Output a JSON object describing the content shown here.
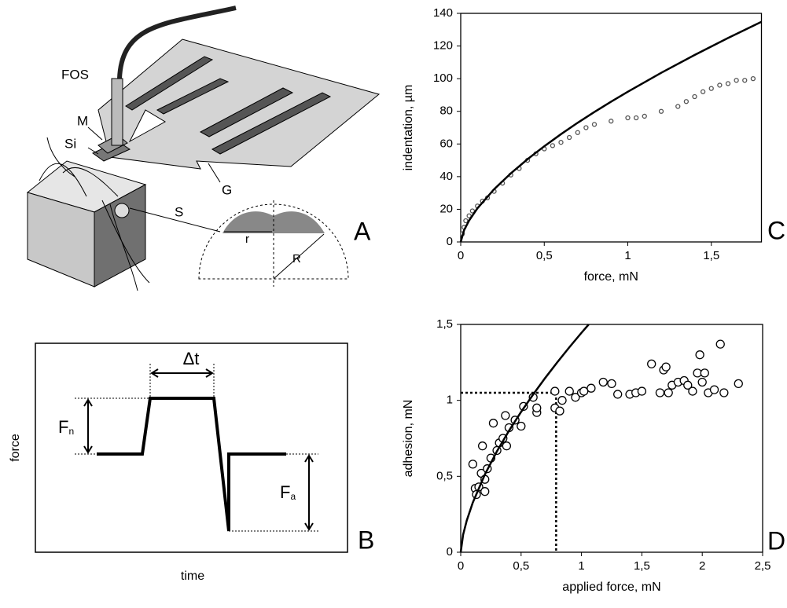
{
  "panel_a": {
    "labels": {
      "fos": "FOS",
      "m": "M",
      "si": "Si",
      "g": "G",
      "s": "S",
      "r_small": "r",
      "r_big": "R"
    },
    "panel_label": "A"
  },
  "panel_b": {
    "y_label": "force",
    "x_label": "time",
    "delta": "Δt",
    "fn": {
      "base": "F",
      "sub": "n"
    },
    "fa": {
      "base": "F",
      "sub": "a"
    },
    "panel_label": "B"
  },
  "chart_data": [
    {
      "type": "scatter",
      "panel_label": "C",
      "x_label": "force, mN",
      "y_label": "indentation, µm",
      "xlim": [
        0,
        1.8
      ],
      "ylim": [
        0,
        140
      ],
      "xticks": [
        0,
        {
          "value": 0.5,
          "label": "0,5"
        },
        1,
        {
          "value": 1.5,
          "label": "1,5"
        }
      ],
      "yticks": [
        0,
        20,
        40,
        60,
        80,
        100,
        120,
        140
      ],
      "grid": false,
      "series": [
        {
          "style": "markers",
          "color": "#555555",
          "x": [
            0.01,
            0.02,
            0.03,
            0.05,
            0.07,
            0.1,
            0.13,
            0.16,
            0.2,
            0.25,
            0.3,
            0.35,
            0.4,
            0.45,
            0.5,
            0.55,
            0.6,
            0.65,
            0.7,
            0.75,
            0.8,
            0.9,
            1.0,
            1.05,
            1.1,
            1.2,
            1.3,
            1.35,
            1.4,
            1.45,
            1.5,
            1.55,
            1.6,
            1.65,
            1.7,
            1.75
          ],
          "values": [
            5,
            9,
            13,
            16,
            19,
            22,
            25,
            27,
            31,
            36,
            41,
            45,
            50,
            54,
            57,
            59,
            61,
            64,
            67,
            70,
            72,
            74,
            76,
            76,
            77,
            80,
            83,
            86,
            89,
            92,
            94,
            96,
            97,
            99,
            99,
            100
          ]
        },
        {
          "style": "line",
          "color": "#000000",
          "x": [
            0,
            0.02,
            0.05,
            0.1,
            0.2,
            0.3,
            0.4,
            0.5,
            0.6,
            0.7,
            0.8,
            0.9,
            1,
            1.2,
            1.4,
            1.6,
            1.8
          ],
          "values": [
            0,
            7.2,
            13.1,
            20.6,
            32.3,
            42.0,
            50.7,
            58.6,
            66.0,
            73.0,
            79.6,
            85.9,
            92,
            103.6,
            114.5,
            124.9,
            134.8
          ]
        }
      ]
    },
    {
      "type": "scatter",
      "panel_label": "D",
      "x_label": "applied force, mN",
      "y_label": "adhesion, mN",
      "xlim": [
        0,
        2.5
      ],
      "ylim": [
        0,
        1.5
      ],
      "xticks": [
        0,
        {
          "value": 0.5,
          "label": "0,5"
        },
        1,
        {
          "value": 1.5,
          "label": "1,5"
        },
        2,
        {
          "value": 2.5,
          "label": "2,5"
        }
      ],
      "yticks": [
        0,
        {
          "value": 0.5,
          "label": "0,5"
        },
        1,
        {
          "value": 1.5,
          "label": "1,5"
        }
      ],
      "grid": false,
      "guide": {
        "x": 0.79,
        "y": 1.05
      },
      "series": [
        {
          "style": "markers",
          "color": "#000000",
          "x": [
            0.1,
            0.12,
            0.13,
            0.15,
            0.17,
            0.18,
            0.2,
            0.2,
            0.22,
            0.25,
            0.27,
            0.3,
            0.32,
            0.35,
            0.37,
            0.38,
            0.4,
            0.45,
            0.5,
            0.52,
            0.6,
            0.63,
            0.63,
            0.78,
            0.78,
            0.82,
            0.84,
            0.9,
            0.95,
            1.0,
            1.02,
            1.08,
            1.18,
            1.25,
            1.3,
            1.4,
            1.45,
            1.5,
            1.58,
            1.65,
            1.68,
            1.7,
            1.72,
            1.75,
            1.8,
            1.85,
            1.88,
            1.92,
            1.96,
            1.98,
            2.0,
            2.02,
            2.05,
            2.1,
            2.15,
            2.18,
            2.3
          ],
          "values": [
            0.58,
            0.42,
            0.38,
            0.43,
            0.52,
            0.7,
            0.48,
            0.4,
            0.55,
            0.62,
            0.85,
            0.67,
            0.72,
            0.75,
            0.9,
            0.7,
            0.82,
            0.87,
            0.83,
            0.96,
            1.02,
            0.92,
            0.95,
            0.95,
            1.06,
            0.93,
            1.0,
            1.06,
            1.02,
            1.05,
            1.06,
            1.08,
            1.12,
            1.11,
            1.04,
            1.04,
            1.05,
            1.06,
            1.24,
            1.05,
            1.2,
            1.22,
            1.05,
            1.1,
            1.12,
            1.13,
            1.1,
            1.06,
            1.18,
            1.3,
            1.12,
            1.18,
            1.05,
            1.07,
            1.37,
            1.05,
            1.11
          ]
        },
        {
          "style": "line",
          "color": "#000000",
          "x": [
            0,
            0.02,
            0.05,
            0.1,
            0.2,
            0.3,
            0.4,
            0.5,
            0.6,
            0.7,
            0.8,
            0.9,
            1,
            1.06
          ],
          "values": [
            0,
            0.116,
            0.209,
            0.327,
            0.512,
            0.665,
            0.8,
            0.924,
            1.039,
            1.148,
            1.251,
            1.35,
            1.445,
            1.5
          ]
        }
      ]
    }
  ]
}
